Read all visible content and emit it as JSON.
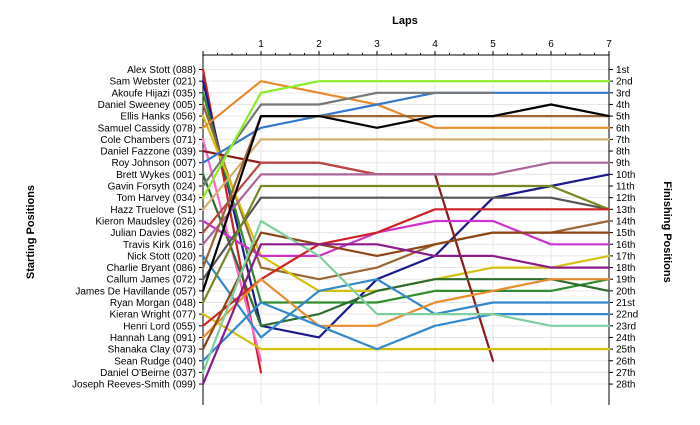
{
  "chart_data": {
    "type": "line",
    "title": "",
    "top_axis_label": "Laps",
    "left_axis_label": "Starting Positions",
    "right_axis_label": "Finishing Positions",
    "laps": [
      0,
      1,
      2,
      3,
      4,
      5,
      6,
      7
    ],
    "lap_tick_labels": [
      "1",
      "2",
      "3",
      "4",
      "5",
      "6",
      "7"
    ],
    "x_range": [
      0,
      7
    ],
    "y_range": [
      1,
      28
    ],
    "grid": true,
    "drivers": [
      "Alex Stott (088)",
      "Sam Webster (021)",
      "Akoufe Hijazi (035)",
      "Daniel Sweeney (005)",
      "Ellis Hanks (056)",
      "Samuel Cassidy (078)",
      "Cole Chambers (071)",
      "Daniel Fazzone (039)",
      "Roy Johnson (007)",
      "Brett Wykes (001)",
      "Gavin Forsyth (024)",
      "Tom Harvey (034)",
      "Hazz Truelove (S1)",
      "Kieron Maudsley (026)",
      "Julian Davies (082)",
      "Travis Kirk (016)",
      "Nick Stott (020)",
      "Charlie Bryant (086)",
      "Callum James (072)",
      "James De Havillande (057)",
      "Ryan Morgan (048)",
      "Kieran Wright (077)",
      "Henri Lord (055)",
      "Hannah Lang (091)",
      "Shanaka Clay (073)",
      "Sean Rudge (040)",
      "Daniel O'Beirne (037)",
      "Joseph Reeves-Smith (099)"
    ],
    "finishing_labels": [
      "1st",
      "2nd",
      "3rd",
      "4th",
      "5th",
      "6th",
      "7th",
      "8th",
      "9th",
      "10th",
      "11th",
      "12th",
      "13th",
      "14th",
      "15th",
      "16th",
      "17th",
      "18th",
      "19th",
      "20th",
      "21st",
      "22nd",
      "23rd",
      "24th",
      "25th",
      "26th",
      "27th",
      "28th"
    ],
    "series": [
      {
        "color": "#cc2222",
        "values": [
          1,
          27
        ]
      },
      {
        "color": "#1a1a8c",
        "values": [
          2,
          23,
          24,
          19,
          17,
          12,
          11,
          10
        ]
      },
      {
        "color": "#2e8b2e",
        "values": [
          3,
          21,
          21,
          21,
          20,
          20,
          20,
          19
        ]
      },
      {
        "color": "#996633",
        "values": [
          4,
          18,
          19,
          18,
          16,
          15,
          15,
          14
        ]
      },
      {
        "color": "#d4c010",
        "values": [
          5,
          17,
          20,
          20,
          19,
          18,
          18,
          17
        ]
      },
      {
        "color": "#e88a2e",
        "values": [
          6,
          2,
          3,
          4,
          6,
          6,
          6,
          6
        ]
      },
      {
        "color": "#ff66cc",
        "values": [
          7,
          26
        ]
      },
      {
        "color": "#8b1a1a",
        "values": [
          8,
          9,
          9,
          10,
          10,
          26
        ]
      },
      {
        "color": "#3377cc",
        "values": [
          9,
          6,
          5,
          4,
          3,
          3,
          3,
          3
        ]
      },
      {
        "color": "#2e6b2e",
        "values": [
          10,
          23,
          22,
          20,
          19,
          19,
          19,
          20
        ]
      },
      {
        "color": "#777777",
        "values": [
          11,
          4,
          4,
          3,
          3,
          3
        ]
      },
      {
        "color": "#88ee22",
        "values": [
          12,
          3,
          2,
          2,
          2,
          2,
          2,
          2
        ]
      },
      {
        "color": "#d4b070",
        "values": [
          13,
          7,
          7,
          7,
          7,
          7,
          7,
          7
        ]
      },
      {
        "color": "#cc33cc",
        "values": [
          14,
          17,
          17,
          15,
          14,
          14,
          16,
          16
        ]
      },
      {
        "color": "#bb4444",
        "values": [
          15,
          9,
          9,
          10,
          10,
          10
        ]
      },
      {
        "color": "#aa6699",
        "values": [
          16,
          10,
          10,
          10,
          10,
          10,
          9,
          9
        ]
      },
      {
        "color": "#3388cc",
        "values": [
          17,
          24,
          20,
          19,
          22,
          21,
          21,
          21
        ]
      },
      {
        "color": "#996633",
        "values": [
          18,
          5,
          5,
          5,
          5,
          5,
          5,
          5
        ]
      },
      {
        "color": "#555555",
        "values": [
          19,
          12,
          12,
          12,
          12,
          12,
          12,
          13
        ]
      },
      {
        "color": "#000000",
        "values": [
          20,
          5,
          5,
          6,
          5,
          5,
          4,
          5
        ]
      },
      {
        "color": "#778822",
        "values": [
          21,
          11,
          11,
          11,
          11,
          11,
          11,
          13
        ]
      },
      {
        "color": "#d4c010",
        "values": [
          22,
          25,
          25,
          25,
          25,
          25,
          25,
          25
        ]
      },
      {
        "color": "#cc2222",
        "values": [
          23,
          19,
          16,
          15,
          13,
          13,
          13,
          13
        ]
      },
      {
        "color": "#e88a2e",
        "values": [
          24,
          19,
          23,
          23,
          21,
          20,
          19,
          19
        ]
      },
      {
        "color": "#8b4513",
        "values": [
          25,
          15,
          16,
          17,
          16,
          15,
          15,
          15
        ]
      },
      {
        "color": "#3388cc",
        "values": [
          26,
          21,
          23,
          25,
          23,
          22,
          22,
          22
        ]
      },
      {
        "color": "#7ecfa0",
        "values": [
          27,
          14,
          17,
          22,
          22,
          22,
          23,
          23
        ]
      },
      {
        "color": "#8b1a8b",
        "values": [
          28,
          16,
          16,
          16,
          17,
          17,
          18,
          18
        ]
      }
    ]
  }
}
